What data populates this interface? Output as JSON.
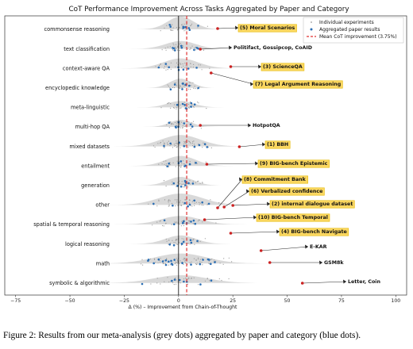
{
  "colors": {
    "highlight_box": "#fbd760",
    "highlight_box_border": "#e6b800",
    "dot_individual": "#9a9a9a",
    "dot_aggregated": "#2b6fb5",
    "dot_annotated": "#cc2222",
    "mean_line": "#e03030",
    "zero_line": "#000000",
    "density_fill": "#cfcfcf"
  },
  "chart_data": {
    "type": "scatter",
    "title": "CoT Performance Improvement Across Tasks Aggregated by Paper and Category",
    "xlabel": "Δ (%) – Improvement from Chain-of-Thought",
    "ylabel": "",
    "xlim": [
      -80,
      105
    ],
    "xticks": [
      -75,
      -50,
      -25,
      0,
      25,
      50,
      75,
      100
    ],
    "xtick_labels": [
      "−75",
      "−50",
      "−25",
      "0",
      "25",
      "50",
      "75",
      "100"
    ],
    "mean_improvement": 3.75,
    "legend": {
      "position": "top-right",
      "entries": [
        {
          "label": "Individual experiments",
          "kind": "individual"
        },
        {
          "label": "Aggregated paper results",
          "kind": "aggregated"
        },
        {
          "label": "Mean CoT improvement (3.75%)",
          "kind": "mean"
        }
      ]
    },
    "categories": [
      "commonsense reasoning",
      "text classification",
      "context-aware QA",
      "encyclopedic knowledge",
      "meta-linguistic",
      "multi-hop QA",
      "mixed datasets",
      "entailment",
      "generation",
      "other",
      "spatial & temporal reasoning",
      "logical reasoning",
      "math",
      "symbolic & algorithmic"
    ],
    "highlights": [
      {
        "label": "(5) Moral Scenarios",
        "category": 0,
        "x": 18,
        "boxed": true
      },
      {
        "label": "Politifact, Gossipcop, CoAID",
        "category": 1,
        "x": 10,
        "boxed": false
      },
      {
        "label": "(3) ScienceQA",
        "category": 2,
        "x": 24,
        "boxed": true
      },
      {
        "label": "(7) Legal Argument Reasoning",
        "category": 2,
        "x": 15,
        "boxed": true
      },
      {
        "label": "HotpotQA",
        "category": 5,
        "x": 10,
        "boxed": false
      },
      {
        "label": "(1) BBH",
        "category": 6,
        "x": 28,
        "boxed": true
      },
      {
        "label": "(9) BIG-bench Epistemic",
        "category": 7,
        "x": 13,
        "boxed": true
      },
      {
        "label": "(8) Commitment Bank",
        "category": 9,
        "x": 18,
        "boxed": true
      },
      {
        "label": "(6) Verbalized confidence",
        "category": 9,
        "x": 21,
        "boxed": true
      },
      {
        "label": "(2) internal dialogue dataset",
        "category": 9,
        "x": 25,
        "boxed": true
      },
      {
        "label": "(10) BIG-bench Temporal",
        "category": 10,
        "x": 12,
        "boxed": true
      },
      {
        "label": "(4) BIG-bench Navigate",
        "category": 10,
        "x": 24,
        "boxed": true
      },
      {
        "label": "E-KAR",
        "category": 11,
        "x": 38,
        "boxed": false
      },
      {
        "label": "GSM8k",
        "category": 12,
        "x": 42,
        "boxed": false
      },
      {
        "label": "Letter, Coin",
        "category": 13,
        "x": 57,
        "boxed": false
      }
    ]
  },
  "caption": "Figure 2: Results from our meta-analysis (grey dots) aggregated by paper and category (blue dots)."
}
